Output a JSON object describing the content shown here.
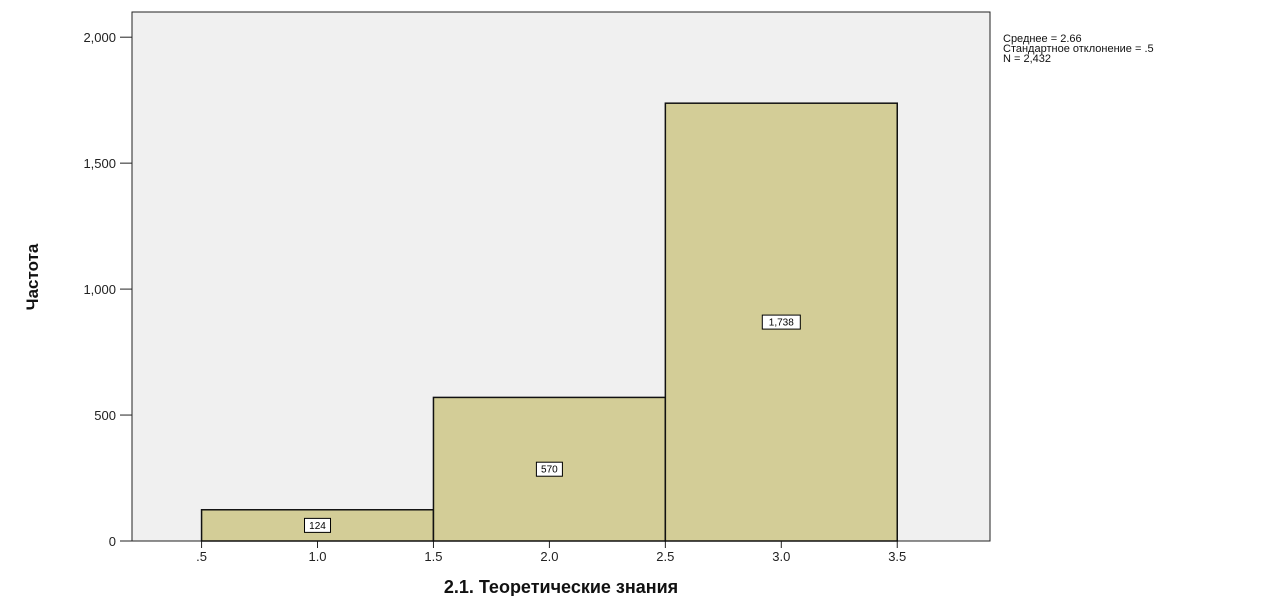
{
  "chart_data": {
    "type": "bar",
    "subtype": "histogram",
    "bins": [
      {
        "x_start": 0.5,
        "x_end": 1.5,
        "value": 124,
        "label": "124"
      },
      {
        "x_start": 1.5,
        "x_end": 2.5,
        "value": 570,
        "label": "570"
      },
      {
        "x_start": 2.5,
        "x_end": 3.5,
        "value": 1738,
        "label": "1,738"
      }
    ],
    "xlabel": "2.1. Теоретические знания",
    "ylabel": "Частота",
    "xlim": [
      0.2,
      3.9
    ],
    "ylim": [
      0,
      2100
    ],
    "x_ticks": [
      {
        "value": 0.5,
        "label": ".5"
      },
      {
        "value": 1.0,
        "label": "1.0"
      },
      {
        "value": 1.5,
        "label": "1.5"
      },
      {
        "value": 2.0,
        "label": "2.0"
      },
      {
        "value": 2.5,
        "label": "2.5"
      },
      {
        "value": 3.0,
        "label": "3.0"
      },
      {
        "value": 3.5,
        "label": "3.5"
      }
    ],
    "y_ticks": [
      {
        "value": 0,
        "label": "0"
      },
      {
        "value": 500,
        "label": "500"
      },
      {
        "value": 1000,
        "label": "1,000"
      },
      {
        "value": 1500,
        "label": "1,500"
      },
      {
        "value": 2000,
        "label": "2,000"
      }
    ],
    "grid": false,
    "colors": {
      "bar_fill": "#d3cd97",
      "bar_stroke": "#111111",
      "plot_background": "#f0f0f0"
    },
    "stats": {
      "mean": "Среднее = 2.66",
      "std": "Стандартное отклонение = .5",
      "n": "N = 2,432"
    }
  }
}
